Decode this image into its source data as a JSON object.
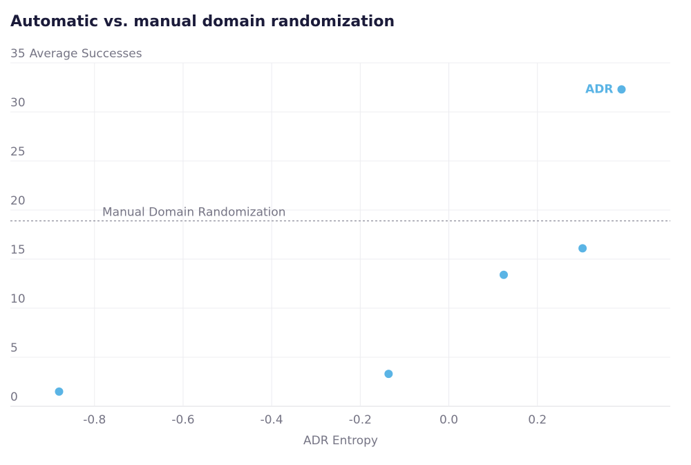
{
  "chart_data": {
    "type": "scatter",
    "title": "Automatic vs. manual domain randomization",
    "x_label": "ADR Entropy",
    "y_label": "Average Successes",
    "x": [
      -0.88,
      -0.136,
      0.124,
      0.302,
      0.39
    ],
    "values": [
      1.5,
      3.3,
      13.4,
      16.1,
      32.3
    ],
    "color": "#5ab4e5",
    "annotation": "ADR",
    "reference_line": {
      "value": 18.9,
      "label": "Manual Domain Randomization"
    },
    "xlim": [
      -0.99,
      0.5
    ],
    "ylim": [
      0,
      35
    ],
    "xticks": [
      -0.8,
      -0.6,
      -0.4,
      -0.2,
      {
        "value": 0,
        "label": "0.0"
      },
      0.2
    ],
    "yticks": [
      0,
      5,
      10,
      15,
      20,
      25,
      30,
      35
    ],
    "grid": true
  }
}
